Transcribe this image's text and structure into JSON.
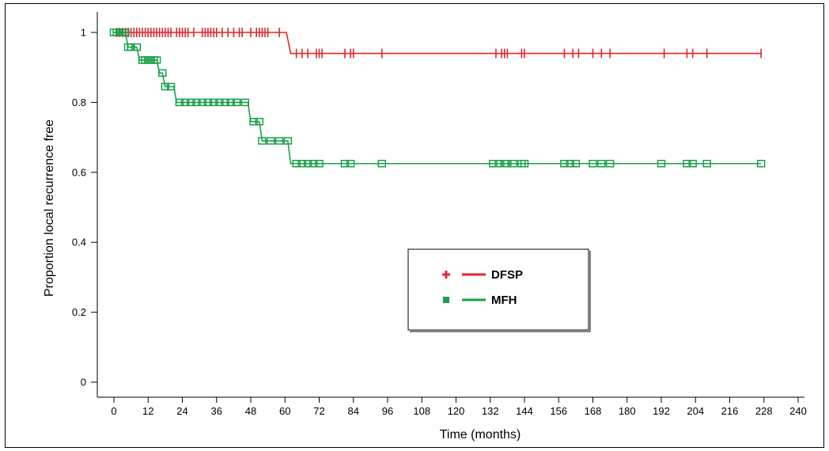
{
  "chart_data": {
    "type": "line",
    "step": true,
    "xlabel": "Time (months)",
    "ylabel": "Proportion local recurrence free",
    "xlim": [
      0,
      240
    ],
    "ylim": [
      0,
      1
    ],
    "xticks": [
      0,
      12,
      24,
      36,
      48,
      60,
      72,
      84,
      96,
      108,
      120,
      132,
      144,
      156,
      168,
      180,
      192,
      204,
      216,
      228,
      240
    ],
    "yticks": [
      0,
      0.2,
      0.4,
      0.6,
      0.8,
      1
    ],
    "ytick_labels": [
      "0",
      "0.2",
      "0.4",
      "0.6",
      "0.8",
      "1"
    ],
    "grid": false,
    "legend_position": "center-right",
    "series": [
      {
        "name": "DFSP",
        "color": "#e0272d",
        "marker": "plus",
        "steps": [
          [
            0,
            1
          ],
          [
            60.5,
            1
          ],
          [
            62,
            0.94
          ],
          [
            227,
            0.94
          ]
        ],
        "censored": [
          [
            1,
            1
          ],
          [
            2,
            1
          ],
          [
            3,
            1
          ],
          [
            4,
            1
          ],
          [
            5,
            1
          ],
          [
            6,
            1
          ],
          [
            7,
            1
          ],
          [
            8,
            1
          ],
          [
            9,
            1
          ],
          [
            10,
            1
          ],
          [
            11,
            1
          ],
          [
            12,
            1
          ],
          [
            13,
            1
          ],
          [
            14,
            1
          ],
          [
            15,
            1
          ],
          [
            16,
            1
          ],
          [
            17,
            1
          ],
          [
            18,
            1
          ],
          [
            19,
            1
          ],
          [
            20,
            1
          ],
          [
            22,
            1
          ],
          [
            23,
            1
          ],
          [
            24,
            1
          ],
          [
            25,
            1
          ],
          [
            26,
            1
          ],
          [
            28,
            1
          ],
          [
            31,
            1
          ],
          [
            32,
            1
          ],
          [
            33,
            1
          ],
          [
            34,
            1
          ],
          [
            35,
            1
          ],
          [
            36,
            1
          ],
          [
            38,
            1
          ],
          [
            40,
            1
          ],
          [
            42,
            1
          ],
          [
            44,
            1
          ],
          [
            45,
            1
          ],
          [
            48,
            1
          ],
          [
            50,
            1
          ],
          [
            51,
            1
          ],
          [
            52,
            1
          ],
          [
            53,
            1
          ],
          [
            54,
            1
          ],
          [
            58,
            1
          ],
          [
            64,
            0.94
          ],
          [
            66,
            0.94
          ],
          [
            68,
            0.94
          ],
          [
            71,
            0.94
          ],
          [
            72,
            0.94
          ],
          [
            73,
            0.94
          ],
          [
            81,
            0.94
          ],
          [
            83,
            0.94
          ],
          [
            84,
            0.94
          ],
          [
            94,
            0.94
          ],
          [
            134,
            0.94
          ],
          [
            136,
            0.94
          ],
          [
            137,
            0.94
          ],
          [
            138,
            0.94
          ],
          [
            143,
            0.94
          ],
          [
            144,
            0.94
          ],
          [
            158,
            0.94
          ],
          [
            161,
            0.94
          ],
          [
            163,
            0.94
          ],
          [
            168,
            0.94
          ],
          [
            171,
            0.94
          ],
          [
            174,
            0.94
          ],
          [
            193,
            0.94
          ],
          [
            201,
            0.94
          ],
          [
            203,
            0.94
          ],
          [
            208,
            0.94
          ],
          [
            227,
            0.94
          ]
        ]
      },
      {
        "name": "MFH",
        "color": "#1aa04a",
        "marker": "open-square",
        "steps": [
          [
            0,
            1
          ],
          [
            4,
            1
          ],
          [
            5,
            0.958
          ],
          [
            8,
            0.958
          ],
          [
            9,
            0.921
          ],
          [
            15,
            0.921
          ],
          [
            16,
            0.884
          ],
          [
            17,
            0.884
          ],
          [
            18,
            0.845
          ],
          [
            21,
            0.845
          ],
          [
            22,
            0.8
          ],
          [
            47,
            0.8
          ],
          [
            48,
            0.745
          ],
          [
            51,
            0.745
          ],
          [
            52,
            0.69
          ],
          [
            61,
            0.69
          ],
          [
            62,
            0.625
          ],
          [
            227,
            0.625
          ]
        ],
        "censored": [
          [
            0,
            1
          ],
          [
            1,
            1
          ],
          [
            2,
            1
          ],
          [
            3,
            1
          ],
          [
            4,
            1
          ],
          [
            5,
            0.958
          ],
          [
            6,
            0.958
          ],
          [
            8,
            0.958
          ],
          [
            10,
            0.921
          ],
          [
            11,
            0.921
          ],
          [
            12,
            0.921
          ],
          [
            13,
            0.921
          ],
          [
            14,
            0.921
          ],
          [
            15,
            0.921
          ],
          [
            17,
            0.884
          ],
          [
            18,
            0.845
          ],
          [
            20,
            0.845
          ],
          [
            23,
            0.8
          ],
          [
            25,
            0.8
          ],
          [
            27,
            0.8
          ],
          [
            29,
            0.8
          ],
          [
            31,
            0.8
          ],
          [
            33,
            0.8
          ],
          [
            35,
            0.8
          ],
          [
            37,
            0.8
          ],
          [
            39,
            0.8
          ],
          [
            41,
            0.8
          ],
          [
            43,
            0.8
          ],
          [
            46,
            0.8
          ],
          [
            49,
            0.745
          ],
          [
            51,
            0.745
          ],
          [
            52,
            0.69
          ],
          [
            55,
            0.69
          ],
          [
            58,
            0.69
          ],
          [
            61,
            0.69
          ],
          [
            64,
            0.625
          ],
          [
            66,
            0.625
          ],
          [
            68,
            0.625
          ],
          [
            70,
            0.625
          ],
          [
            72,
            0.625
          ],
          [
            81,
            0.625
          ],
          [
            83,
            0.625
          ],
          [
            94,
            0.625
          ],
          [
            133,
            0.625
          ],
          [
            135,
            0.625
          ],
          [
            137,
            0.625
          ],
          [
            138,
            0.625
          ],
          [
            140,
            0.625
          ],
          [
            143,
            0.625
          ],
          [
            144,
            0.625
          ],
          [
            158,
            0.625
          ],
          [
            160,
            0.625
          ],
          [
            162,
            0.625
          ],
          [
            168,
            0.625
          ],
          [
            171,
            0.625
          ],
          [
            174,
            0.625
          ],
          [
            192,
            0.625
          ],
          [
            201,
            0.625
          ],
          [
            203,
            0.625
          ],
          [
            208,
            0.625
          ],
          [
            227,
            0.625
          ]
        ]
      }
    ]
  }
}
